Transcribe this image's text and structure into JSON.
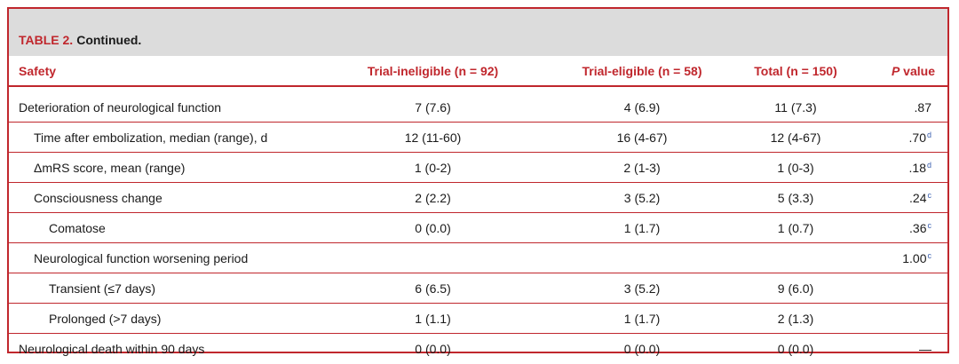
{
  "table": {
    "number_label": "TABLE 2.",
    "title": "Continued.",
    "headers": {
      "safety": "Safety",
      "trial_ineligible": "Trial-ineligible (n = 92)",
      "trial_eligible": "Trial-eligible (n = 58)",
      "total": "Total (n = 150)",
      "p_value_letter": "P",
      "p_value_rest": " value"
    },
    "rows": [
      {
        "label": "Deterioration of neurological function",
        "indent": 0,
        "ineligible": "7 (7.6)",
        "eligible": "4 (6.9)",
        "total": "11 (7.3)",
        "p": ".87",
        "p_sup": ""
      },
      {
        "label": "Time after embolization, median (range), d",
        "indent": 1,
        "ineligible": "12 (11-60)",
        "eligible": "16 (4-67)",
        "total": "12 (4-67)",
        "p": ".70",
        "p_sup": "d"
      },
      {
        "label": "ΔmRS score, mean (range)",
        "indent": 1,
        "ineligible": "1 (0-2)",
        "eligible": "2 (1-3)",
        "total": "1 (0-3)",
        "p": ".18",
        "p_sup": "d"
      },
      {
        "label": "Consciousness change",
        "indent": 1,
        "ineligible": "2 (2.2)",
        "eligible": "3 (5.2)",
        "total": "5 (3.3)",
        "p": ".24",
        "p_sup": "c"
      },
      {
        "label": "Comatose",
        "indent": 2,
        "ineligible": "0 (0.0)",
        "eligible": "1 (1.7)",
        "total": "1 (0.7)",
        "p": ".36",
        "p_sup": "c"
      },
      {
        "label": "Neurological function worsening period",
        "indent": 1,
        "ineligible": "",
        "eligible": "",
        "total": "",
        "p": "1.00",
        "p_sup": "c"
      },
      {
        "label": "Transient (≤7 days)",
        "indent": 2,
        "ineligible": "6 (6.5)",
        "eligible": "3 (5.2)",
        "total": "9 (6.0)",
        "p": "",
        "p_sup": ""
      },
      {
        "label": "Prolonged (>7 days)",
        "indent": 2,
        "ineligible": "1 (1.1)",
        "eligible": "1 (1.7)",
        "total": "2 (1.3)",
        "p": "",
        "p_sup": ""
      },
      {
        "label": "Neurological death within 90 days",
        "indent": 0,
        "ineligible": "0 (0.0)",
        "eligible": "0 (0.0)",
        "total": "0 (0.0)",
        "p": "—",
        "p_sup": ""
      }
    ]
  },
  "colors": {
    "accent": "#c0272d",
    "title_bar_bg": "#dcdcdc",
    "footnote_marker": "#3a5fb0"
  }
}
